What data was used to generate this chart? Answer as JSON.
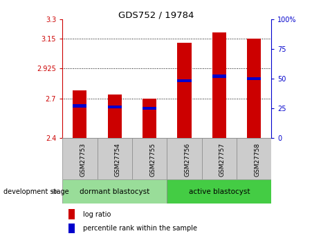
{
  "title": "GDS752 / 19784",
  "samples": [
    "GSM27753",
    "GSM27754",
    "GSM27755",
    "GSM27756",
    "GSM27757",
    "GSM27758"
  ],
  "log_ratio": [
    2.76,
    2.73,
    2.7,
    3.12,
    3.2,
    3.15
  ],
  "percentile_rank": [
    27,
    26,
    25,
    48,
    52,
    50
  ],
  "ylim_left": [
    2.4,
    3.3
  ],
  "ylim_right": [
    0,
    100
  ],
  "yticks_left": [
    2.4,
    2.7,
    2.925,
    3.15,
    3.3
  ],
  "ytick_labels_left": [
    "2.4",
    "2.7",
    "2.925",
    "3.15",
    "3.3"
  ],
  "yticks_right": [
    0,
    25,
    50,
    75,
    100
  ],
  "ytick_labels_right": [
    "0",
    "25",
    "50",
    "75",
    "100%"
  ],
  "hlines": [
    2.7,
    2.925,
    3.15
  ],
  "bar_color": "#cc0000",
  "percentile_color": "#0000cc",
  "bar_width": 0.4,
  "groups": [
    {
      "label": "dormant blastocyst",
      "samples": [
        0,
        1,
        2
      ],
      "color": "#99dd99"
    },
    {
      "label": "active blastocyst",
      "samples": [
        3,
        4,
        5
      ],
      "color": "#44cc44"
    }
  ],
  "group_label": "development stage",
  "legend_log_ratio": "log ratio",
  "legend_percentile": "percentile rank within the sample",
  "tick_color_left": "#cc0000",
  "tick_color_right": "#0000cc",
  "sample_box_color": "#cccccc",
  "sample_box_edge": "#888888"
}
